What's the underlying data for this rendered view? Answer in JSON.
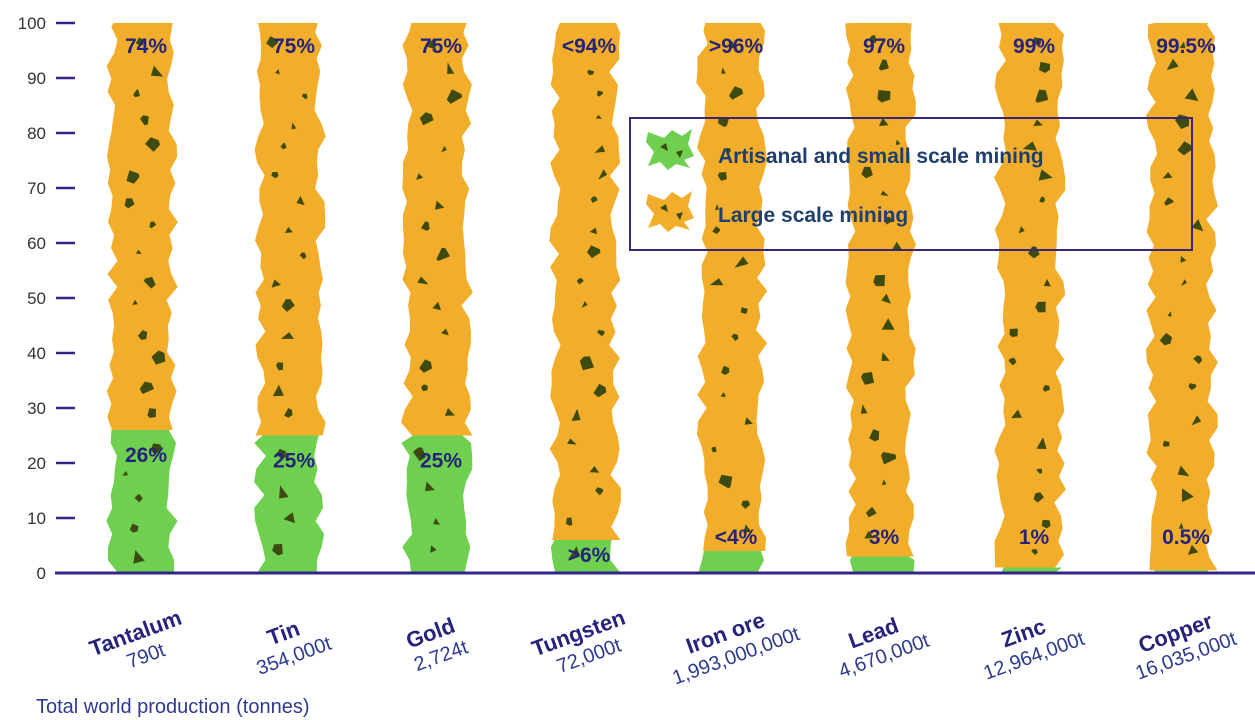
{
  "chart_data": {
    "type": "bar",
    "stacked": true,
    "ylim": [
      0,
      100
    ],
    "yticks": [
      0,
      10,
      20,
      30,
      40,
      50,
      60,
      70,
      80,
      90,
      100
    ],
    "categories": [
      "Tantalum",
      "Tin",
      "Gold",
      "Tungsten",
      "Iron ore",
      "Lead",
      "Zinc",
      "Copper"
    ],
    "production": [
      "790t",
      "354,000t",
      "2,724t",
      "72,000t",
      "1,993,000,000t",
      "4,670,000t",
      "12,964,000t",
      "16,035,000t"
    ],
    "series": [
      {
        "name": "Artisanal and small scale mining",
        "values": [
          26,
          25,
          25,
          6,
          4,
          3,
          1,
          0.5
        ],
        "labels": [
          "26%",
          "25%",
          "25%",
          ">6%",
          "<4%",
          "3%",
          "1%",
          "0.5%"
        ],
        "color": "#6fcf4f"
      },
      {
        "name": "Large scale mining",
        "values": [
          74,
          75,
          75,
          94,
          96,
          97,
          99,
          99.5
        ],
        "labels": [
          "74%",
          "75%",
          "75%",
          "<94%",
          ">96%",
          "97%",
          "99%",
          "99.5%"
        ],
        "color": "#f2ae2a"
      }
    ],
    "legend_position": "top-right",
    "footer": "Total world production (tonnes)",
    "colors": {
      "axis": "#33248a",
      "text": "#26237a",
      "speckle": "#3d4a10"
    }
  }
}
